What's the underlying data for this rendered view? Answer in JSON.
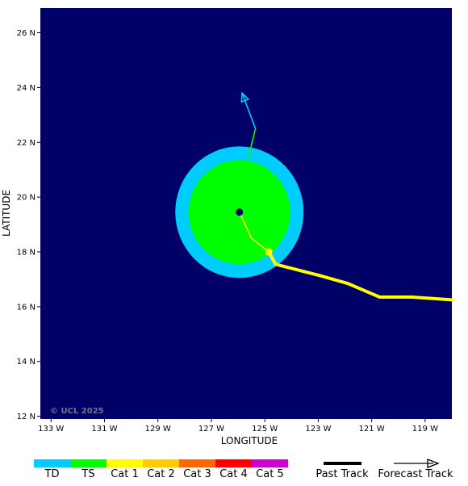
{
  "map": {
    "background_color": "#000066",
    "copyright": "© UCL 2025",
    "x_axis": {
      "title": "LONGITUDE",
      "range_lon": [
        -133.4,
        -118.0
      ],
      "ticks": [
        {
          "lon": -133,
          "label": "133 W"
        },
        {
          "lon": -131,
          "label": "131 W"
        },
        {
          "lon": -129,
          "label": "129 W"
        },
        {
          "lon": -127,
          "label": "127 W"
        },
        {
          "lon": -125,
          "label": "125 W"
        },
        {
          "lon": -123,
          "label": "123 W"
        },
        {
          "lon": -121,
          "label": "121 W"
        },
        {
          "lon": -119,
          "label": "119 W"
        }
      ]
    },
    "y_axis": {
      "title": "LATITUDE",
      "range_lat": [
        11.9,
        26.9
      ],
      "ticks": [
        {
          "lat": 12,
          "label": "12 N"
        },
        {
          "lat": 14,
          "label": "14 N"
        },
        {
          "lat": 16,
          "label": "16 N"
        },
        {
          "lat": 18,
          "label": "18 N"
        },
        {
          "lat": 20,
          "label": "20 N"
        },
        {
          "lat": 22,
          "label": "22 N"
        },
        {
          "lat": 24,
          "label": "24 N"
        },
        {
          "lat": 26,
          "label": "26 N"
        }
      ]
    },
    "storm": {
      "center": {
        "lon": -125.95,
        "lat": 19.45
      },
      "td_wind_radius_deg": 2.4,
      "ts_wind_radius_deg": 1.9,
      "current_category": "TS"
    },
    "past_track": [
      {
        "lon": -118.0,
        "lat": 16.25,
        "category": "Cat 1"
      },
      {
        "lon": -119.5,
        "lat": 16.35,
        "category": "Cat 1"
      },
      {
        "lon": -120.7,
        "lat": 16.35,
        "category": "Cat 1"
      },
      {
        "lon": -121.9,
        "lat": 16.85,
        "category": "Cat 1"
      },
      {
        "lon": -123.0,
        "lat": 17.15,
        "category": "Cat 1"
      },
      {
        "lon": -124.6,
        "lat": 17.55,
        "category": "Cat 1"
      },
      {
        "lon": -124.85,
        "lat": 18.0,
        "category": "Cat 1"
      },
      {
        "lon": -125.5,
        "lat": 18.5,
        "category": "Cat 1"
      },
      {
        "lon": -125.95,
        "lat": 19.45,
        "category": "TS"
      }
    ],
    "past_track_marker": {
      "lon": -124.85,
      "lat": 18.0,
      "category": "Cat 1"
    },
    "forecast_track": [
      {
        "lon": -125.95,
        "lat": 19.45,
        "category": "TS"
      },
      {
        "lon": -125.85,
        "lat": 20.5,
        "category": "TS"
      },
      {
        "lon": -125.35,
        "lat": 22.5,
        "category": "TS"
      },
      {
        "lon": -125.85,
        "lat": 23.8,
        "category": "TD"
      }
    ]
  },
  "legend": {
    "categories": [
      {
        "label": "TD",
        "color": "#00ccff"
      },
      {
        "label": "TS",
        "color": "#00ff00"
      },
      {
        "label": "Cat 1",
        "color": "#ffff00"
      },
      {
        "label": "Cat 2",
        "color": "#ffcc00"
      },
      {
        "label": "Cat 3",
        "color": "#ff6600"
      },
      {
        "label": "Cat 4",
        "color": "#ff0000"
      },
      {
        "label": "Cat 5",
        "color": "#cc00cc"
      }
    ],
    "past_track_label": "Past Track",
    "forecast_track_label": "Forecast Track"
  }
}
